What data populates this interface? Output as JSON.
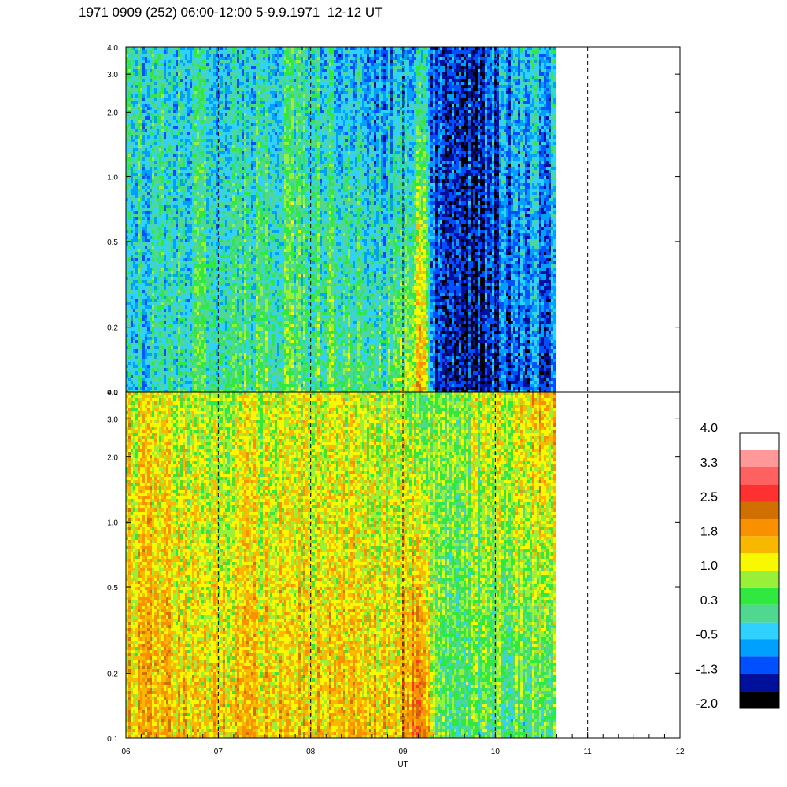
{
  "title": "1971 0909 (252) 06:00-12:00 5-9.9.1971  12-12 UT",
  "chart_data": [
    {
      "type": "heatmap",
      "panel": "upper",
      "xlabel": "",
      "ylabel": "",
      "y_scale": "log",
      "ylim": [
        0.1,
        4.0
      ],
      "y_ticks": [
        "0.1",
        "0.2",
        "0.5",
        "1.0",
        "2.0",
        "3.0",
        "4.0"
      ],
      "xlim": [
        6,
        12
      ],
      "data_end_x": 10.65,
      "dashed_gridlines_x": [
        7,
        8,
        9,
        10,
        11
      ],
      "intensity_profile": {
        "note": "approximate dominant color level vs time (low band / high band)",
        "x": [
          6.0,
          6.5,
          7.0,
          7.5,
          8.0,
          8.3,
          8.5,
          8.9,
          9.2,
          9.35,
          9.7,
          10.0,
          10.4,
          10.65
        ],
        "low_freq_level": [
          -0.5,
          0.0,
          0.3,
          0.3,
          0.3,
          0.5,
          0.3,
          0.3,
          1.8,
          -1.3,
          -1.3,
          -1.3,
          -1.0,
          -1.0
        ],
        "high_freq_level": [
          0.0,
          -0.2,
          -0.3,
          -0.2,
          0.0,
          -0.4,
          -0.5,
          -0.8,
          -0.3,
          -1.0,
          -1.2,
          -0.8,
          -0.3,
          -0.3
        ]
      }
    },
    {
      "type": "heatmap",
      "panel": "lower",
      "xlabel": "UT",
      "ylabel": "",
      "y_scale": "log",
      "ylim": [
        0.1,
        4.0
      ],
      "y_ticks": [
        "0.1",
        "0.2",
        "0.5",
        "1.0",
        "2.0",
        "3.0",
        "4.0"
      ],
      "x_ticks": [
        "06",
        "07",
        "08",
        "09",
        "10",
        "11",
        "12"
      ],
      "xlim": [
        6,
        12
      ],
      "data_end_x": 10.65,
      "dashed_gridlines_x": [
        7,
        8,
        9,
        10,
        11
      ],
      "intensity_profile": {
        "note": "approximate dominant color level vs time (low band / high band)",
        "x": [
          6.0,
          6.5,
          7.0,
          7.5,
          8.0,
          8.3,
          8.5,
          8.9,
          9.2,
          9.35,
          9.7,
          10.0,
          10.4,
          10.65
        ],
        "low_freq_level": [
          1.6,
          1.6,
          1.4,
          1.5,
          1.4,
          1.6,
          1.5,
          1.4,
          2.7,
          0.4,
          0.3,
          0.3,
          0.3,
          0.3
        ],
        "high_freq_level": [
          1.3,
          1.0,
          0.8,
          1.0,
          1.0,
          1.0,
          0.9,
          0.8,
          0.6,
          0.6,
          0.8,
          1.1,
          1.5,
          1.6
        ]
      }
    }
  ],
  "colorbar": {
    "labels": [
      "4.0",
      "3.3",
      "2.5",
      "1.8",
      "1.0",
      "0.3",
      "-0.5",
      "-1.3",
      "-2.0"
    ],
    "colors": [
      "#000000",
      "#00109a",
      "#0050ff",
      "#00a0ff",
      "#30d0ff",
      "#50d890",
      "#30e840",
      "#98f038",
      "#f8f800",
      "#f8b800",
      "#f89000",
      "#d07000",
      "#ff3030",
      "#ff6060",
      "#ff9898",
      "#ffffff"
    ]
  }
}
